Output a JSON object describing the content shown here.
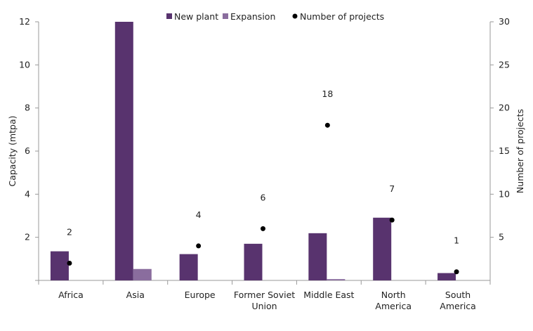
{
  "chart_data": {
    "type": "bar",
    "categories": [
      [
        "Africa"
      ],
      [
        "Asia"
      ],
      [
        "Europe"
      ],
      [
        "Former Soviet",
        "Union"
      ],
      [
        "Middle East"
      ],
      [
        "North",
        "America"
      ],
      [
        "South",
        "America"
      ]
    ],
    "series": [
      {
        "name": "New plant",
        "type": "bar",
        "axis": "left",
        "color": "#58336e",
        "values": [
          1.35,
          12,
          1.22,
          1.7,
          2.19,
          2.91,
          0.34
        ]
      },
      {
        "name": "Expansion",
        "type": "bar",
        "axis": "left",
        "color": "#8a6d9e",
        "values": [
          0,
          0.53,
          0,
          0,
          0.06,
          0,
          0
        ]
      },
      {
        "name": "Number of projects",
        "type": "scatter",
        "axis": "right",
        "color": "#000000",
        "values": [
          2,
          null,
          4,
          6,
          18,
          7,
          1
        ],
        "labels": [
          "2",
          "",
          "4",
          "6",
          "18",
          "7",
          "1"
        ]
      }
    ],
    "ylabel": "Capacity (mtpa)",
    "ylim": [
      0,
      12
    ],
    "yticks": [
      "2",
      "4",
      "6",
      "8",
      "10",
      "12"
    ],
    "y2label": "Number of projects",
    "y2lim": [
      0,
      30
    ],
    "y2ticks": [
      "5",
      "10",
      "15",
      "20",
      "25",
      "30"
    ],
    "grid": false,
    "legend": "top"
  }
}
